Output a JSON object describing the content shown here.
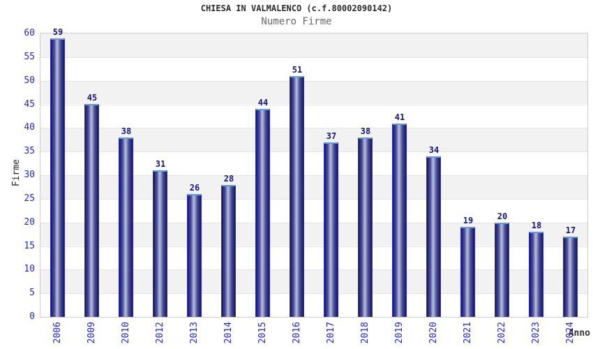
{
  "chart_data": {
    "type": "bar",
    "title": "CHIESA IN VALMALENCO (c.f.80002090142)",
    "subtitle": "Numero Firme",
    "xlabel": "Anno",
    "ylabel": "Firme",
    "categories": [
      "2006",
      "2009",
      "2010",
      "2012",
      "2013",
      "2014",
      "2015",
      "2016",
      "2017",
      "2018",
      "2019",
      "2020",
      "2021",
      "2022",
      "2023",
      "2024"
    ],
    "values": [
      59,
      45,
      38,
      31,
      26,
      28,
      44,
      51,
      37,
      38,
      41,
      34,
      19,
      20,
      18,
      17
    ],
    "ylim": [
      0,
      60
    ],
    "ytick_step": 5,
    "grid": "alternating horizontal bands every 5 units, gray over white, thin gridlines",
    "legend": "none",
    "bar_value_labels": true
  },
  "colors": {
    "axis_label_blue": "#2424cc",
    "value_label_navy": "#15157d",
    "bar_border_blue": "#2d2dc8",
    "bar_top_cap_blue": "#5e9be0",
    "bar_dark": "#16165e",
    "bar_mid": "#4a4e9b",
    "bar_light": "#bcc0dc",
    "band_gray": "#f2f2f2",
    "grid_line": "#e3e3e3",
    "plot_border": "#cccccc",
    "title_color": "#2b2b2b",
    "subtitle_color": "#666666"
  }
}
